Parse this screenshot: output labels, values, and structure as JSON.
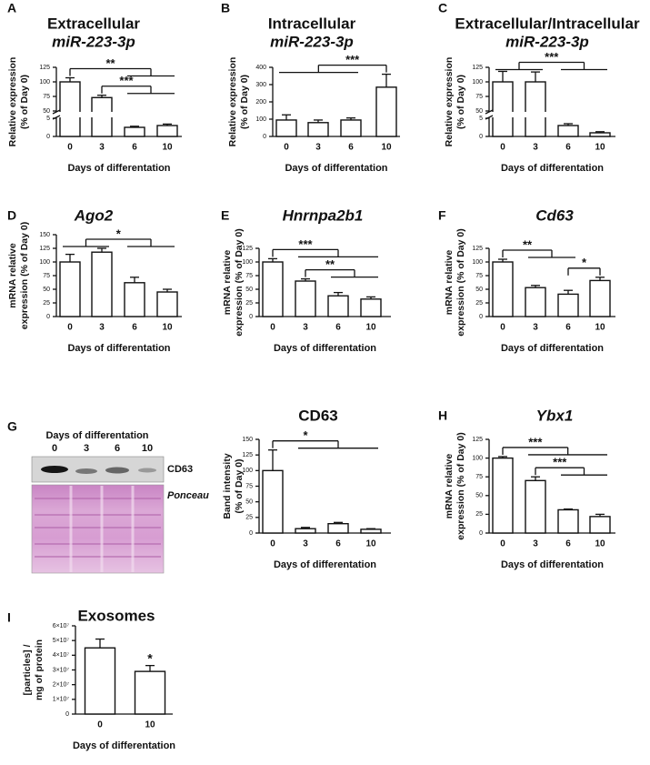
{
  "chart_data": [
    {
      "type": "bar",
      "panel": "A",
      "title": "Extracellular",
      "subtitle": "miR-223-3p",
      "ylabel": [
        "Relative expression",
        "(% of Day 0)"
      ],
      "xlabel": "Days of differentation",
      "categories": [
        "0",
        "3",
        "6",
        "10"
      ],
      "values": [
        100,
        73,
        2.5,
        3
      ],
      "errors": [
        7,
        4,
        0.3,
        0.4
      ],
      "ylim": [
        0,
        125
      ],
      "ybreak": [
        5,
        50
      ],
      "yticks": [
        0,
        5,
        50,
        75,
        100,
        125
      ],
      "annotations": [
        {
          "text": "**",
          "between": [
            [
              0
            ],
            [
              2,
              3
            ]
          ]
        },
        {
          "text": "***",
          "between": [
            [
              1
            ],
            [
              2,
              3
            ]
          ]
        }
      ]
    },
    {
      "type": "bar",
      "panel": "B",
      "title": "Intracellular",
      "subtitle": "miR-223-3p",
      "ylabel": [
        "Relative expression",
        "(% of Day 0)"
      ],
      "xlabel": "Days of differentation",
      "categories": [
        "0",
        "3",
        "6",
        "10"
      ],
      "values": [
        95,
        80,
        95,
        285
      ],
      "errors": [
        30,
        15,
        12,
        75
      ],
      "ylim": [
        0,
        400
      ],
      "yticks": [
        0,
        100,
        200,
        300,
        400
      ],
      "annotations": [
        {
          "text": "***",
          "between": [
            [
              0,
              1,
              2
            ],
            [
              3
            ]
          ]
        }
      ]
    },
    {
      "type": "bar",
      "panel": "C",
      "title": "Extracellular/Intracellular",
      "subtitle": "miR-223-3p",
      "ylabel": [
        "Relative expression",
        "(% of Day 0)"
      ],
      "xlabel": "Days of differentation",
      "categories": [
        "0",
        "3",
        "6",
        "10"
      ],
      "values": [
        100,
        100,
        3,
        1
      ],
      "errors": [
        18,
        17,
        0.5,
        0.3
      ],
      "ylim": [
        0,
        125
      ],
      "ybreak": [
        5,
        50
      ],
      "yticks": [
        0,
        5,
        50,
        75,
        100,
        125
      ],
      "annotations": [
        {
          "text": "***",
          "between": [
            [
              0,
              1
            ],
            [
              2,
              3
            ]
          ]
        }
      ]
    },
    {
      "type": "bar",
      "panel": "D",
      "title": "Ago2",
      "title_style": "italic",
      "ylabel": [
        "mRNA relative",
        "expression (% of Day 0)"
      ],
      "xlabel": "Days of differentation",
      "categories": [
        "0",
        "3",
        "6",
        "10"
      ],
      "values": [
        100,
        118,
        62,
        45
      ],
      "errors": [
        14,
        7,
        10,
        5
      ],
      "ylim": [
        0,
        150
      ],
      "yticks": [
        0,
        25,
        50,
        75,
        100,
        125,
        150
      ],
      "annotations": [
        {
          "text": "*",
          "between": [
            [
              0,
              1
            ],
            [
              2,
              3
            ]
          ]
        }
      ]
    },
    {
      "type": "bar",
      "panel": "E",
      "title": "Hnrnpa2b1",
      "title_style": "italic",
      "ylabel": [
        "mRNA relative",
        "expression (% of Day 0)"
      ],
      "xlabel": "Days of differentation",
      "categories": [
        "0",
        "3",
        "6",
        "10"
      ],
      "values": [
        100,
        65,
        38,
        32
      ],
      "errors": [
        6,
        4,
        6,
        4
      ],
      "ylim": [
        0,
        125
      ],
      "yticks": [
        0,
        25,
        50,
        75,
        100,
        125
      ],
      "annotations": [
        {
          "text": "***",
          "between": [
            [
              0
            ],
            [
              1,
              2,
              3
            ]
          ]
        },
        {
          "text": "**",
          "between": [
            [
              1
            ],
            [
              2,
              3
            ]
          ]
        }
      ]
    },
    {
      "type": "bar",
      "panel": "F",
      "title": "Cd63",
      "title_style": "italic",
      "ylabel": [
        "mRNA relative",
        "expression (% of Day 0)"
      ],
      "xlabel": "Days of differentation",
      "categories": [
        "0",
        "3",
        "6",
        "10"
      ],
      "values": [
        100,
        53,
        41,
        66
      ],
      "errors": [
        5,
        4,
        7,
        6
      ],
      "ylim": [
        0,
        125
      ],
      "yticks": [
        0,
        25,
        50,
        75,
        100,
        125
      ],
      "annotations": [
        {
          "text": "**",
          "between": [
            [
              0
            ],
            [
              1,
              2
            ]
          ]
        },
        {
          "text": "*",
          "between": [
            [
              2
            ],
            [
              3
            ]
          ]
        }
      ]
    },
    {
      "type": "bar",
      "title": "CD63",
      "ylabel": [
        "Band intensity",
        "(% of Day 0)"
      ],
      "xlabel": "Days of differentation",
      "categories": [
        "0",
        "3",
        "6",
        "10"
      ],
      "values": [
        100,
        7,
        15,
        6
      ],
      "errors": [
        33,
        2,
        2,
        1
      ],
      "ylim": [
        0,
        150
      ],
      "yticks": [
        0,
        25,
        50,
        75,
        100,
        125,
        150
      ],
      "annotations": [
        {
          "text": "*",
          "between": [
            [
              0
            ],
            [
              1,
              2,
              3
            ]
          ]
        }
      ]
    },
    {
      "type": "bar",
      "panel": "H",
      "title": "Ybx1",
      "title_style": "italic",
      "ylabel": [
        "mRNA relative",
        "expression (% of Day 0)"
      ],
      "xlabel": "Days of differentation",
      "categories": [
        "0",
        "3",
        "6",
        "10"
      ],
      "values": [
        100,
        70,
        31,
        22
      ],
      "errors": [
        2,
        5,
        1,
        3
      ],
      "ylim": [
        0,
        125
      ],
      "yticks": [
        0,
        25,
        50,
        75,
        100,
        125
      ],
      "annotations": [
        {
          "text": "***",
          "between": [
            [
              0
            ],
            [
              1,
              2,
              3
            ]
          ]
        },
        {
          "text": "***",
          "between": [
            [
              1
            ],
            [
              2,
              3
            ]
          ]
        }
      ]
    },
    {
      "type": "bar",
      "panel": "I",
      "title": "Exosomes",
      "ylabel": [
        "[particles] /",
        "mg of protein"
      ],
      "xlabel": "Days of differentation",
      "categories": [
        "0",
        "10"
      ],
      "values": [
        45000000,
        29000000
      ],
      "errors": [
        6000000,
        4000000
      ],
      "ylim": [
        0,
        60000000
      ],
      "yticks": [
        0,
        {
          "value": 10000000,
          "label": "1×10⁷"
        },
        {
          "value": 20000000,
          "label": "2×10⁷"
        },
        {
          "value": 30000000,
          "label": "3×10⁷"
        },
        {
          "value": 40000000,
          "label": "4×10⁷"
        },
        {
          "value": 50000000,
          "label": "5×10⁷"
        },
        {
          "value": 60000000,
          "label": "6×10⁷"
        }
      ],
      "annotations": [
        {
          "text": "*",
          "between": [
            [
              1
            ]
          ]
        }
      ]
    }
  ],
  "blot": {
    "panel": "G",
    "header": "Days of differentation",
    "lanes": [
      "0",
      "3",
      "6",
      "10"
    ],
    "band": "CD63",
    "stain": "Ponceau"
  }
}
